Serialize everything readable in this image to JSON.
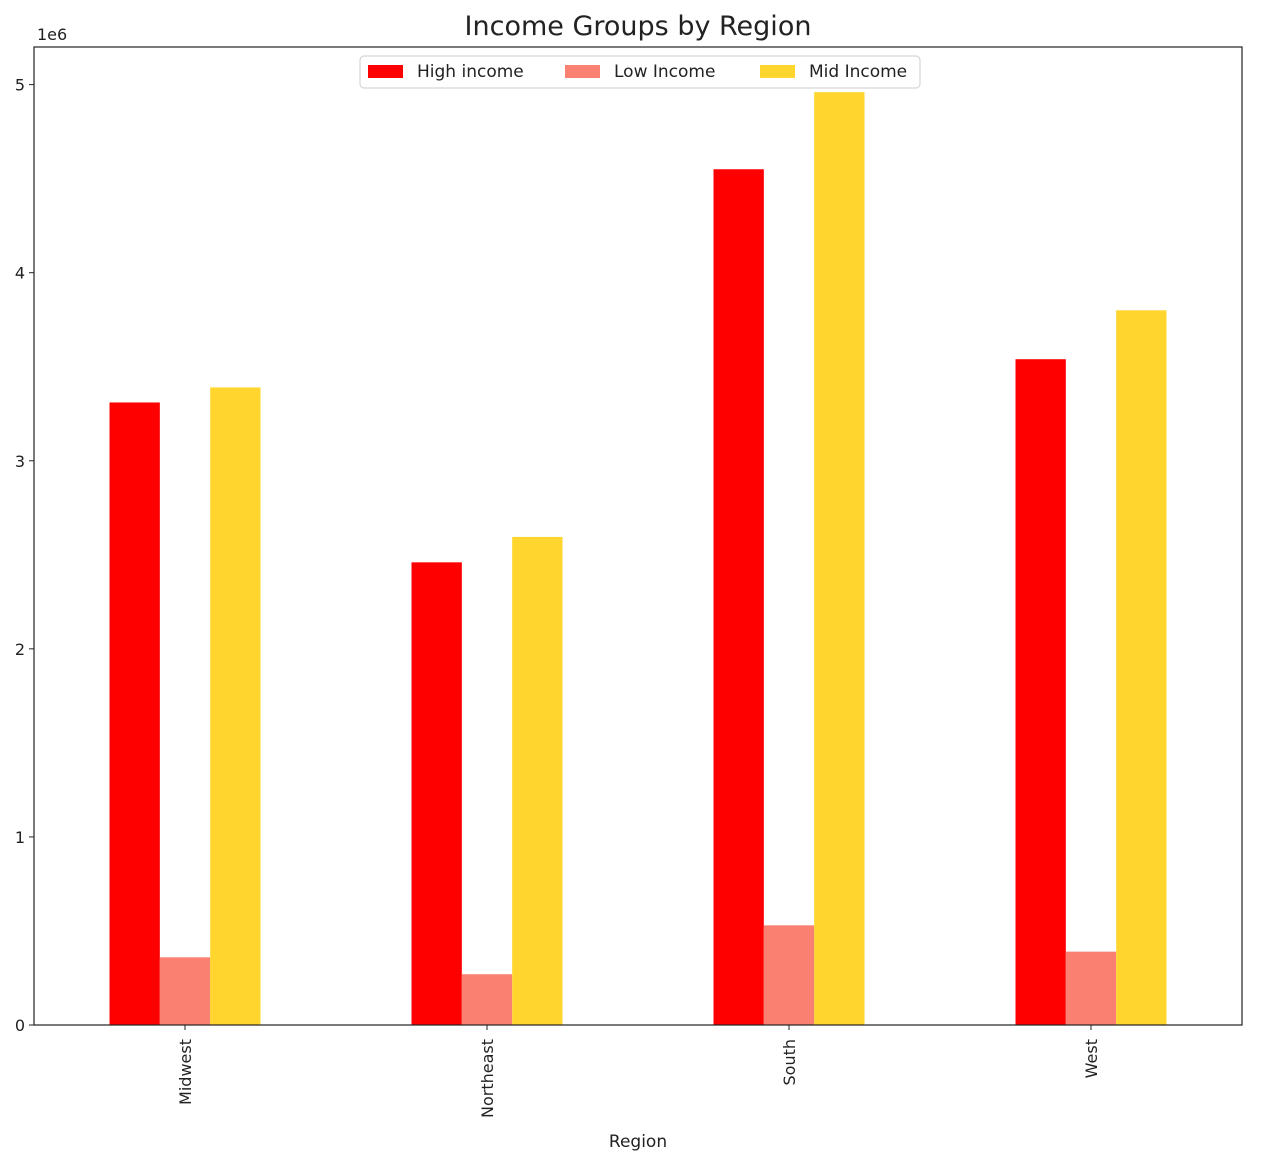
{
  "chart_data": {
    "type": "bar",
    "title": "Income Groups by Region",
    "xlabel": "Region",
    "ylabel": "",
    "y_offset_label": "1e6",
    "y_scale": 1000000,
    "ylim": [
      0,
      5200000
    ],
    "yticks": [
      0,
      1,
      2,
      3,
      4,
      5
    ],
    "categories": [
      "Midwest",
      "Northeast",
      "South",
      "West"
    ],
    "series": [
      {
        "name": "High income",
        "color": "#ff0000",
        "values": [
          3310000,
          2460000,
          4550000,
          3540000
        ]
      },
      {
        "name": "Low Income",
        "color": "#fa8072",
        "values": [
          360000,
          270000,
          530000,
          390000
        ]
      },
      {
        "name": "Mid Income",
        "color": "#ffd52e",
        "values": [
          3390000,
          2595000,
          4960000,
          3800000
        ]
      }
    ],
    "legend_position": "upper-center",
    "grid": false
  }
}
